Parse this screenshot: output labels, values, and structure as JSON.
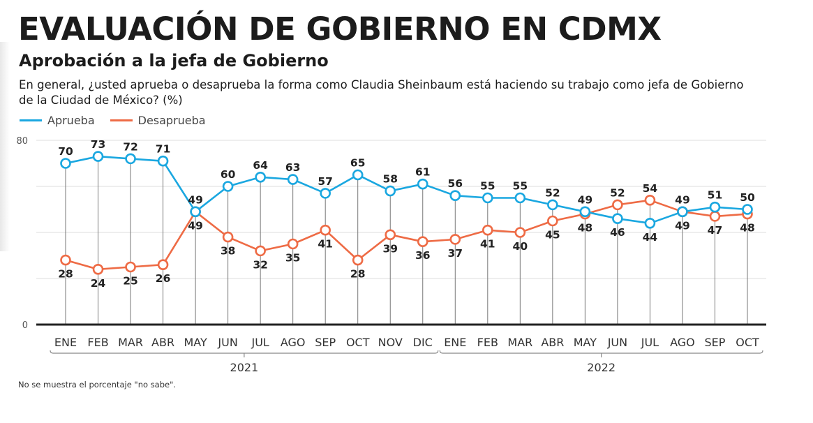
{
  "header": {
    "title": "EVALUACIÓN DE GOBIERNO EN CDMX",
    "subtitle": "Aprobación a la jefa de Gobierno",
    "question": "En general, ¿usted aprueba o desaprueba la forma como Claudia Sheinbaum está haciendo su trabajo como jefa de Gobierno de la Ciudad de México? (%)"
  },
  "legend": [
    {
      "label": "Aprueba",
      "color": "#1aa7e0"
    },
    {
      "label": "Desaprueba",
      "color": "#ee6b45"
    }
  ],
  "footnote": "No se muestra el porcentaje \"no sabe\".",
  "chart_data": {
    "type": "line",
    "title": "Aprobación a la jefa de Gobierno",
    "xlabel": "",
    "ylabel": "%",
    "ylim": [
      0,
      80
    ],
    "yticks": [
      0,
      80
    ],
    "gridlines": [
      20,
      40,
      60,
      80
    ],
    "grid": true,
    "legend_position": "top-left",
    "categories": [
      "ENE",
      "FEB",
      "MAR",
      "ABR",
      "MAY",
      "JUN",
      "JUL",
      "AGO",
      "SEP",
      "OCT",
      "NOV",
      "DIC",
      "ENE",
      "FEB",
      "MAR",
      "ABR",
      "MAY",
      "JUN",
      "JUL",
      "AGO",
      "SEP",
      "OCT"
    ],
    "year_groups": [
      {
        "label": "2021",
        "start": 0,
        "end": 11
      },
      {
        "label": "2022",
        "start": 12,
        "end": 21
      }
    ],
    "series": [
      {
        "name": "Aprueba",
        "color": "#1aa7e0",
        "values": [
          70,
          73,
          72,
          71,
          49,
          60,
          64,
          63,
          57,
          65,
          58,
          61,
          56,
          55,
          55,
          52,
          49,
          46,
          44,
          49,
          51,
          50
        ]
      },
      {
        "name": "Desaprueba",
        "color": "#ee6b45",
        "values": [
          28,
          24,
          25,
          26,
          49,
          38,
          32,
          35,
          41,
          28,
          39,
          36,
          37,
          41,
          40,
          45,
          48,
          52,
          54,
          49,
          47,
          48
        ]
      }
    ]
  }
}
